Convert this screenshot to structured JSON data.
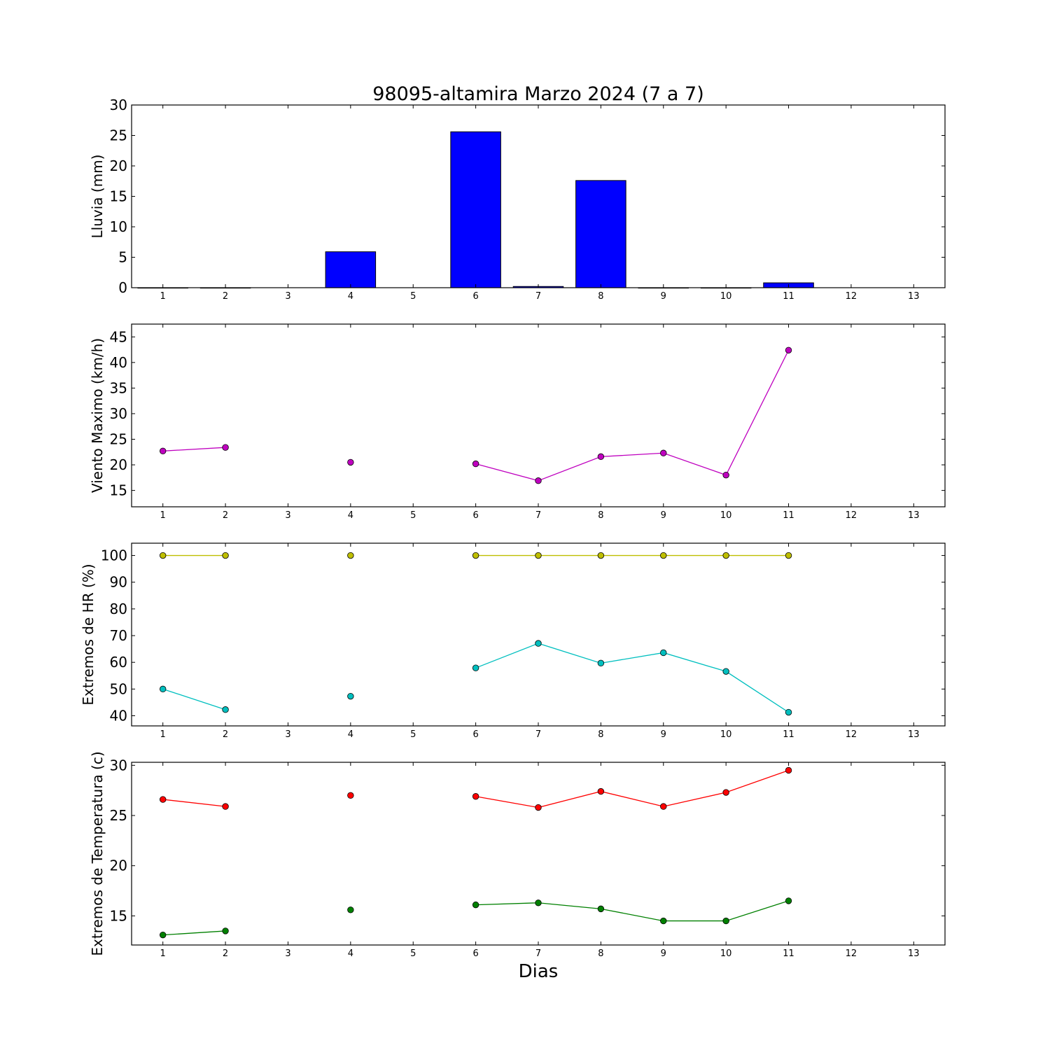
{
  "title": "98095-altamira Marzo 2024  (7 a 7)",
  "xlabel": "Dias",
  "colors": {
    "bar": "#0000ff",
    "wind": "#bf00bf",
    "hr_max": "#bfbf00",
    "hr_min": "#00bfbf",
    "t_max": "#ff0000",
    "t_min": "#008000"
  },
  "chart_data": [
    {
      "type": "bar",
      "ylabel": "Lluvia (mm)",
      "x": [
        1,
        2,
        3,
        4,
        5,
        6,
        7,
        8,
        9,
        10,
        11,
        12,
        13
      ],
      "xlim": [
        0.5,
        13.5
      ],
      "ylim": [
        0,
        30
      ],
      "yticks": [
        0,
        5,
        10,
        15,
        20,
        25,
        30
      ],
      "grid": false,
      "series": [
        {
          "values": [
            0,
            0,
            null,
            5.9,
            null,
            25.6,
            0.2,
            17.6,
            0,
            0,
            0.8,
            null,
            null
          ]
        }
      ]
    },
    {
      "type": "line",
      "ylabel": "Viento Maximo (km/h)",
      "x": [
        1,
        2,
        3,
        4,
        5,
        6,
        7,
        8,
        9,
        10,
        11,
        12,
        13
      ],
      "xlim": [
        0.5,
        13.5
      ],
      "ylim": [
        11.8,
        47.5
      ],
      "yticks": [
        15,
        20,
        25,
        30,
        35,
        40,
        45
      ],
      "grid": false,
      "series": [
        {
          "values": [
            22.7,
            23.4,
            null,
            20.5,
            null,
            20.2,
            16.9,
            21.6,
            22.3,
            18.0,
            42.4,
            null,
            null
          ]
        }
      ]
    },
    {
      "type": "line",
      "ylabel": "Extremos de HR (%)",
      "x": [
        1,
        2,
        3,
        4,
        5,
        6,
        7,
        8,
        9,
        10,
        11,
        12,
        13
      ],
      "xlim": [
        0.5,
        13.5
      ],
      "ylim": [
        36.2,
        104.6
      ],
      "yticks": [
        40,
        50,
        60,
        70,
        80,
        90,
        100
      ],
      "grid": false,
      "series": [
        {
          "values": [
            100,
            100,
            null,
            100,
            null,
            100,
            100,
            100,
            100,
            100,
            100,
            null,
            null
          ]
        },
        {
          "values": [
            50.0,
            42.3,
            null,
            47.3,
            null,
            57.9,
            67.1,
            59.7,
            63.6,
            56.6,
            41.3,
            null,
            null
          ]
        }
      ]
    },
    {
      "type": "line",
      "ylabel": "Extremos de Temperatura (c)",
      "x": [
        1,
        2,
        3,
        4,
        5,
        6,
        7,
        8,
        9,
        10,
        11,
        12,
        13
      ],
      "xlim": [
        0.5,
        13.5
      ],
      "ylim": [
        12.1,
        30.3
      ],
      "yticks": [
        15,
        20,
        25,
        30
      ],
      "grid": false,
      "series": [
        {
          "values": [
            26.6,
            25.9,
            null,
            27.0,
            null,
            26.9,
            25.8,
            27.4,
            25.9,
            27.3,
            29.5,
            null,
            null
          ]
        },
        {
          "values": [
            13.1,
            13.5,
            null,
            15.6,
            null,
            16.1,
            16.3,
            15.7,
            14.5,
            14.5,
            16.5,
            null,
            null
          ]
        }
      ]
    }
  ]
}
